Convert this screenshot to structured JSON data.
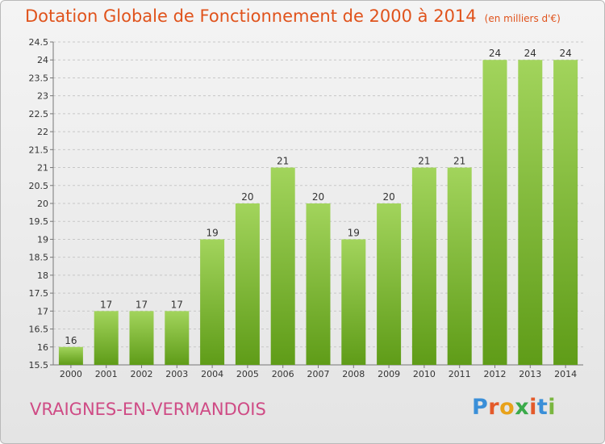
{
  "title": "Dotation Globale de Fonctionnement de 2000 à 2014",
  "unit_note": "(en milliers d'€)",
  "commune": "VRAIGNES-EN-VERMANDOIS",
  "logo": {
    "text": "Proxiti",
    "letter_colors": [
      "#3a8fd8",
      "#e45a2a",
      "#e8a21a",
      "#3aaa4a",
      "#e45a2a",
      "#3a8fd8",
      "#7ab640"
    ]
  },
  "colors": {
    "title": "#e0531c",
    "commune": "#cf4b85",
    "bar_light": "#a2d45c",
    "bar_dark": "#5f9c18",
    "grid": "#c7c7c7",
    "axis_text": "#333333"
  },
  "chart_data": {
    "type": "bar",
    "categories": [
      "2000",
      "2001",
      "2002",
      "2003",
      "2004",
      "2005",
      "2006",
      "2007",
      "2008",
      "2009",
      "2010",
      "2011",
      "2012",
      "2013",
      "2014"
    ],
    "values": [
      16,
      17,
      17,
      17,
      19,
      20,
      21,
      20,
      19,
      20,
      21,
      21,
      24,
      24,
      24
    ],
    "data_labels": [
      "16",
      "17",
      "17",
      "17",
      "19",
      "20",
      "21",
      "20",
      "19",
      "20",
      "21",
      "21",
      "24",
      "24",
      "24"
    ],
    "ylim": [
      15.5,
      24.5
    ],
    "yticks": [
      "15.5",
      "16",
      "16.5",
      "17",
      "17.5",
      "18",
      "18.5",
      "19",
      "19.5",
      "20",
      "20.5",
      "21",
      "21.5",
      "22",
      "22.5",
      "23",
      "23.5",
      "24",
      "24.5"
    ],
    "grid": true,
    "xlabel": "",
    "ylabel": ""
  }
}
